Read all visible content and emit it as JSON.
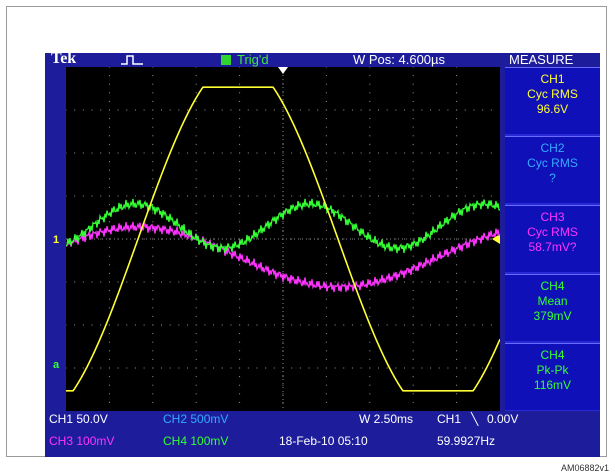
{
  "header": {
    "brand": "Tek",
    "trigger_status": "Trig'd",
    "horizontal_position": "W Pos: 4.600µs",
    "measure_title": "MEASURE"
  },
  "measurements": [
    {
      "channel": "CH1",
      "type": "Cyc RMS",
      "value": "96.6V",
      "color": "#ffff33"
    },
    {
      "channel": "CH2",
      "type": "Cyc RMS",
      "value": "?",
      "color": "#33aaff"
    },
    {
      "channel": "CH3",
      "type": "Cyc RMS",
      "value": "58.7mV?",
      "color": "#ff33ff"
    },
    {
      "channel": "CH4",
      "type": "Mean",
      "value": "379mV",
      "color": "#33ff33"
    },
    {
      "channel": "CH4",
      "type": "Pk-Pk",
      "value": "116mV",
      "color": "#33ff33"
    }
  ],
  "markers": {
    "ch1_ground": "1",
    "ch4_ground": "a"
  },
  "footer": {
    "ch1_scale": "CH1  50.0V",
    "ch2_scale": "CH2  500mV",
    "ch3_scale": "CH3  100mV",
    "ch4_scale": "CH4  100mV",
    "timebase": "W 2.50ms",
    "trigger_source": "CH1",
    "trigger_slope": "╲",
    "trigger_level": "0.00V",
    "date_time": "18-Feb-10 05:10",
    "frequency": "59.9927Hz"
  },
  "colors": {
    "ch1": "#ffff33",
    "ch2": "#33aaff",
    "ch3": "#ff33ff",
    "ch4": "#33ff33",
    "screen": "#000000",
    "bezel": "#1d1d9b"
  },
  "figure_id": "AM06882v1"
}
